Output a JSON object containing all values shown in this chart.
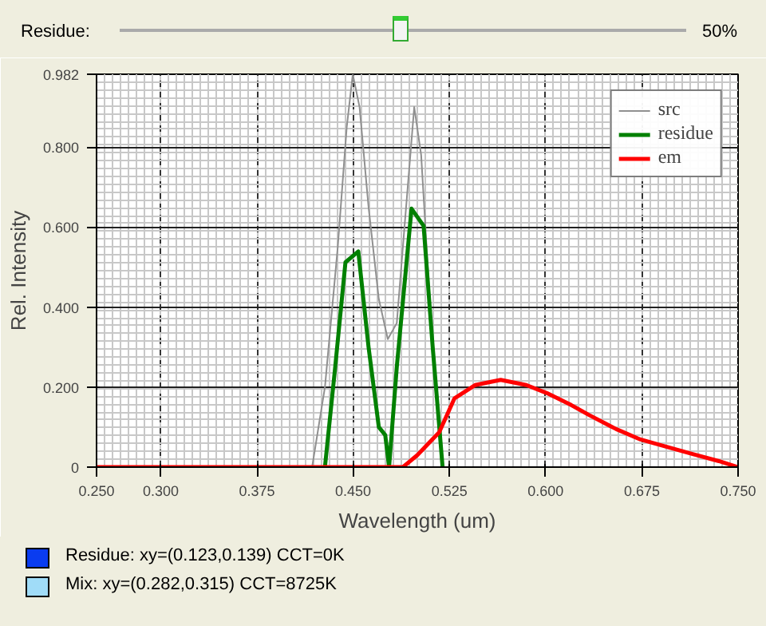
{
  "chart_data": {
    "type": "line",
    "xlabel": "Wavelength (um)",
    "ylabel": "Rel. Intensity",
    "xlim": [
      0.25,
      0.75
    ],
    "ylim": [
      0,
      0.982
    ],
    "xticks": [
      {
        "value": 0.25,
        "label": "0.250"
      },
      {
        "value": 0.3,
        "label": "0.300"
      },
      {
        "value": 0.375,
        "label": "0.375"
      },
      {
        "value": 0.45,
        "label": "0.450"
      },
      {
        "value": 0.525,
        "label": "0.525"
      },
      {
        "value": 0.6,
        "label": "0.600"
      },
      {
        "value": 0.675,
        "label": "0.675"
      },
      {
        "value": 0.75,
        "label": "0.750"
      }
    ],
    "yticks": [
      0,
      {
        "value": 0.2,
        "label": "0.200"
      },
      {
        "value": 0.4,
        "label": "0.400"
      },
      {
        "value": 0.6,
        "label": "0.600"
      },
      {
        "value": 0.8,
        "label": "0.800"
      },
      0.982
    ],
    "grid": true,
    "legend": "top right",
    "series": [
      {
        "name": "src",
        "color": "#909090",
        "x": [
          0.418,
          0.428,
          0.438,
          0.445,
          0.4497,
          0.455,
          0.462,
          0.47,
          0.477,
          0.484,
          0.49,
          0.4976,
          0.503,
          0.51,
          0.519
        ],
        "values": [
          0,
          0.2,
          0.55,
          0.85,
          0.982,
          0.9,
          0.65,
          0.42,
          0.32,
          0.36,
          0.6,
          0.9,
          0.78,
          0.4,
          0
        ]
      },
      {
        "name": "residue",
        "color": "#008000",
        "x": [
          0.428,
          0.436,
          0.444,
          0.454,
          0.462,
          0.47,
          0.475,
          0.478,
          0.484,
          0.4955,
          0.5049,
          0.512,
          0.5197
        ],
        "values": [
          0,
          0.25,
          0.512,
          0.539,
          0.3,
          0.1,
          0.08,
          0,
          0.25,
          0.646,
          0.603,
          0.3,
          0
        ]
      },
      {
        "name": "em",
        "color": "#ff0000",
        "x": [
          0.25,
          0.4888,
          0.5,
          0.517,
          0.529,
          0.545,
          0.565,
          0.585,
          0.601,
          0.62,
          0.634,
          0.655,
          0.674,
          0.695,
          0.714,
          0.735,
          0.75
        ],
        "values": [
          0,
          0,
          0.03,
          0.087,
          0.172,
          0.205,
          0.218,
          0.205,
          0.185,
          0.155,
          0.13,
          0.095,
          0.069,
          0.05,
          0.033,
          0.015,
          0
        ]
      }
    ],
    "annotations": [
      "Residue:",
      "50%",
      "Residue: xy=(0.123,0.139)  CCT=0K",
      "Mix: xy=(0.282,0.315)  CCT=8725K"
    ]
  }
}
